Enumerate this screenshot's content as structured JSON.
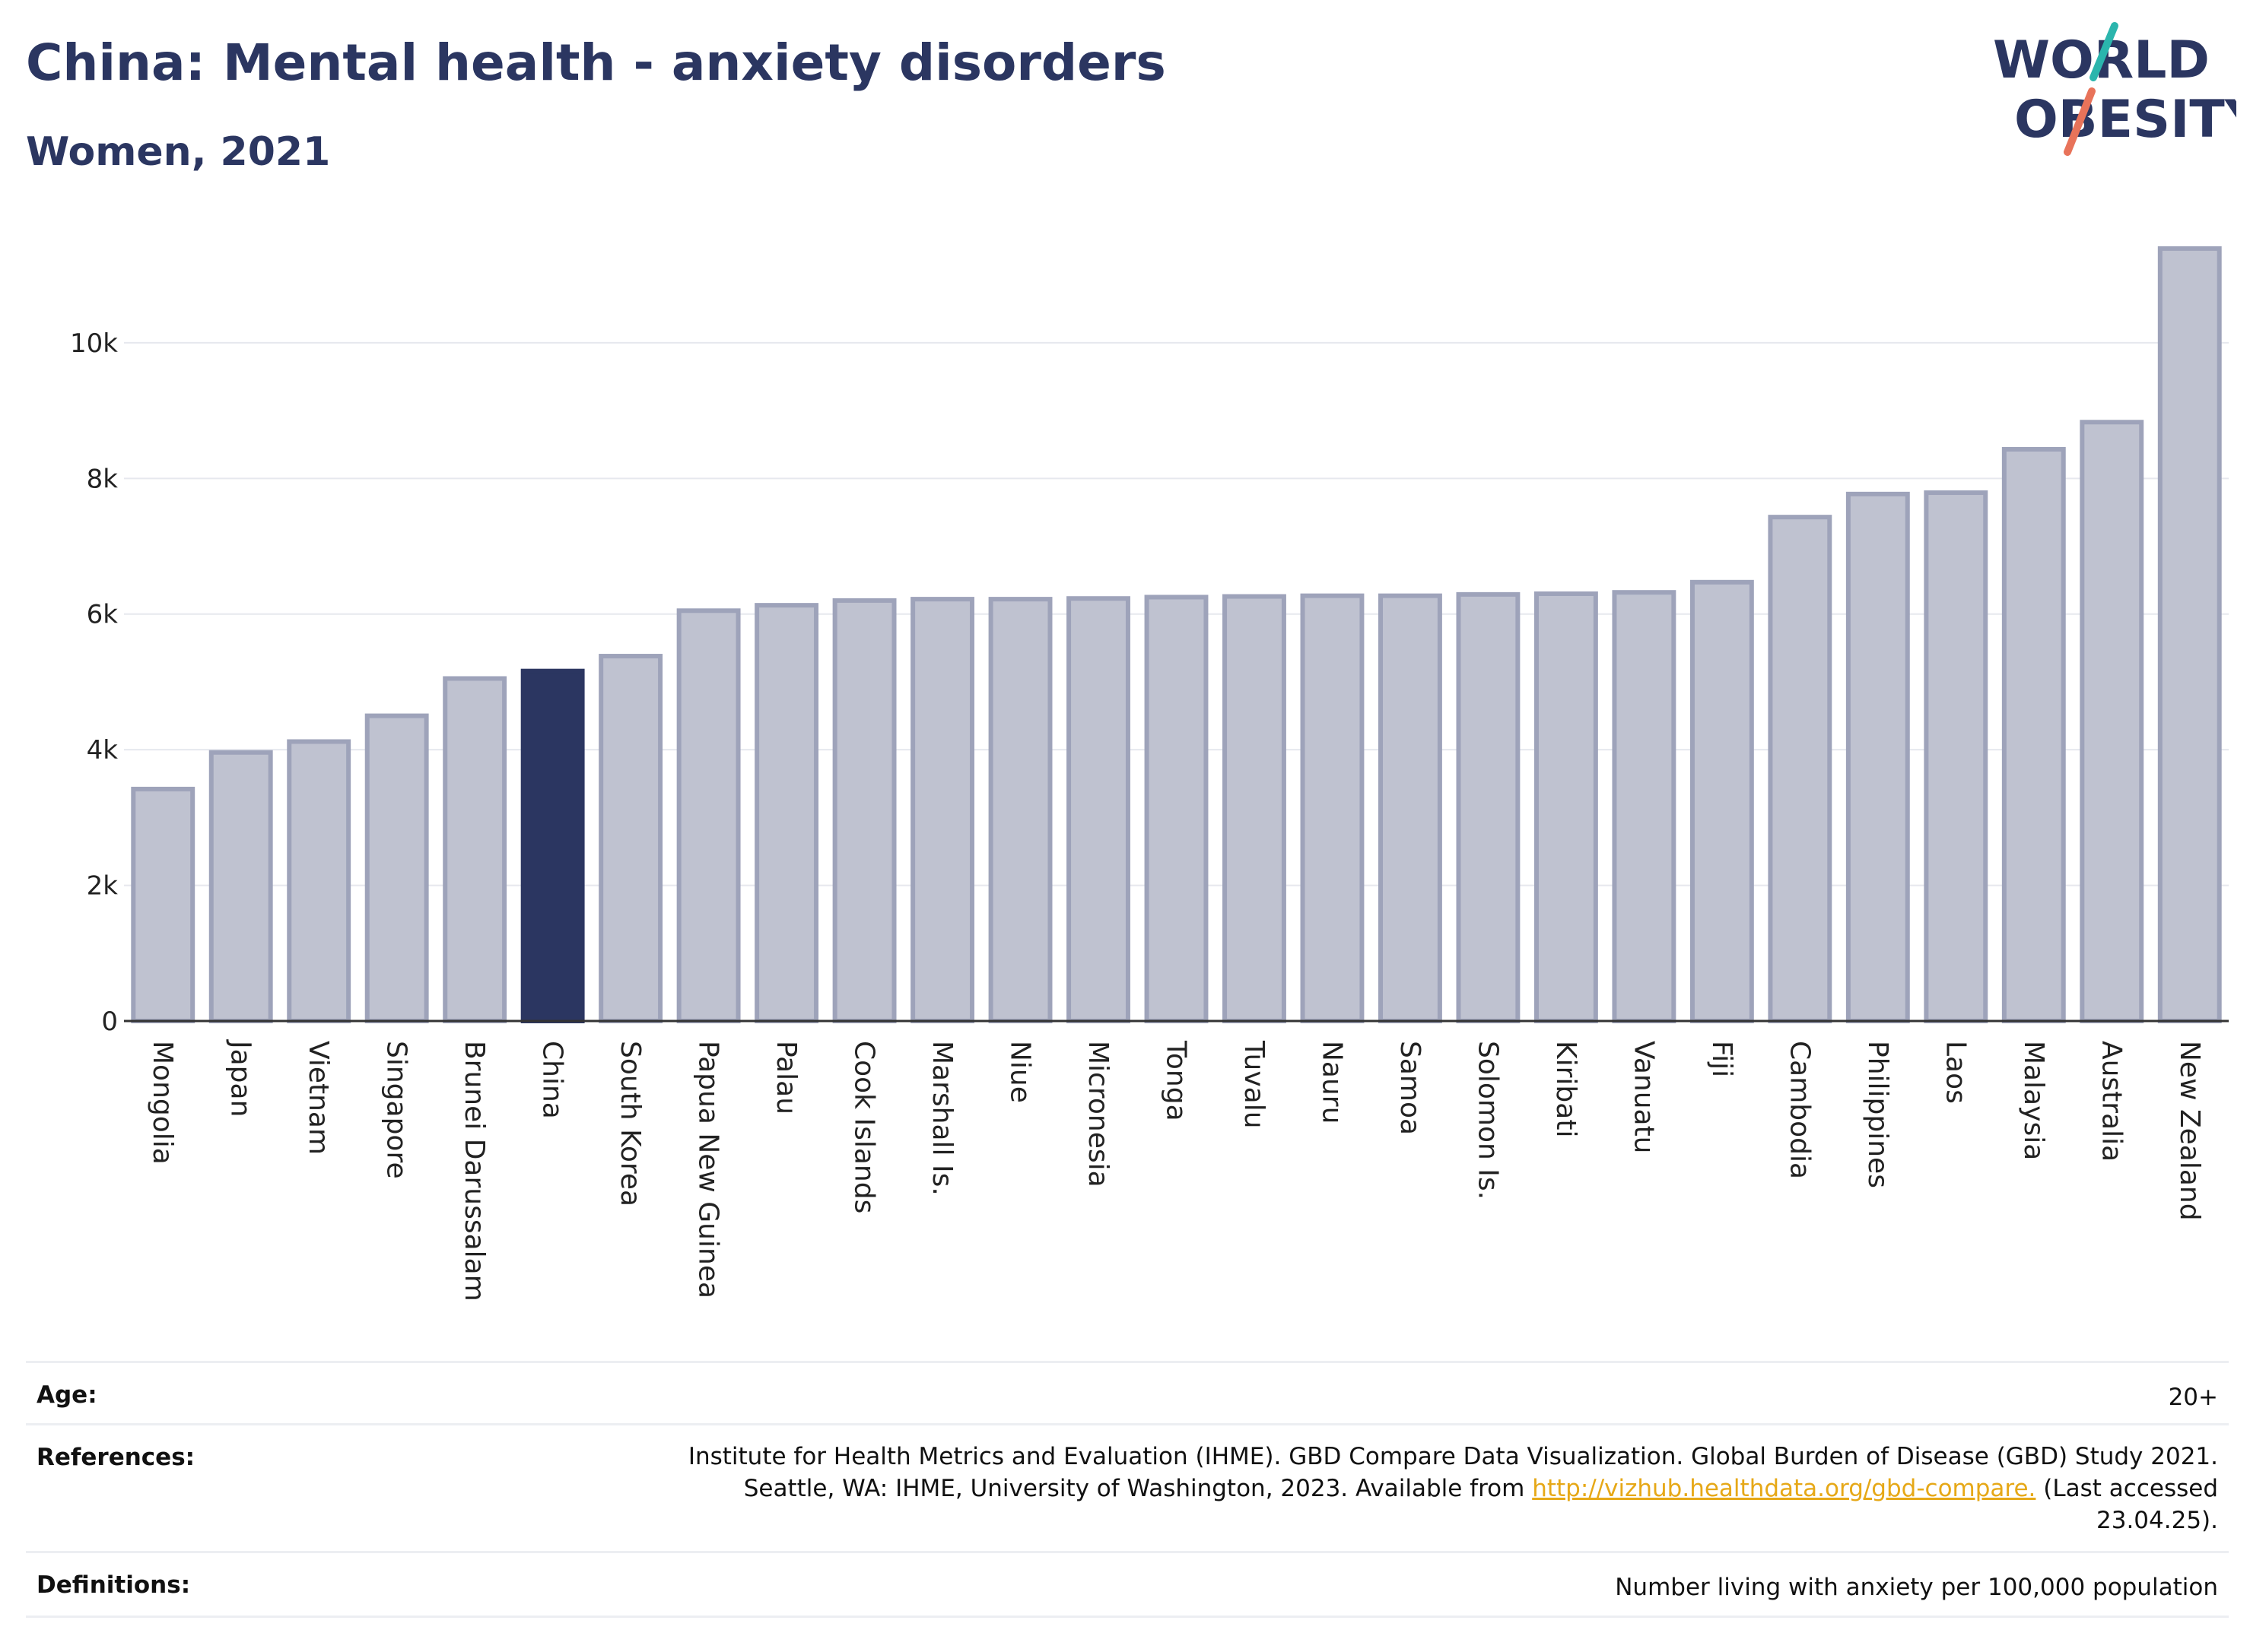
{
  "header": {
    "title": "China: Mental health - anxiety disorders",
    "subtitle": "Women, 2021"
  },
  "logo": {
    "line1": "WORLD",
    "line2": "OBESITY",
    "colors": {
      "text": "#2b3661",
      "slash_teal": "#2bb5ad",
      "slash_coral": "#e8735a"
    }
  },
  "chart_data": {
    "type": "bar",
    "ylim": [
      0,
      11400
    ],
    "yticks": [
      0,
      2000,
      4000,
      6000,
      8000,
      10000
    ],
    "ytick_labels": [
      "0",
      "2k",
      "4k",
      "6k",
      "8k",
      "10k"
    ],
    "grid": true,
    "highlight": "China",
    "colors": {
      "bar": "#bfc2d0",
      "bar_edge": "#9ea3ba",
      "highlight": "#2b3661"
    },
    "categories": [
      "Mongolia",
      "Japan",
      "Vietnam",
      "Singapore",
      "Brunei Darussalam",
      "China",
      "South Korea",
      "Papua New Guinea",
      "Palau",
      "Cook Islands",
      "Marshall Is.",
      "Niue",
      "Micronesia",
      "Tonga",
      "Tuvalu",
      "Nauru",
      "Samoa",
      "Solomon Is.",
      "Kiribati",
      "Vanuatu",
      "Fiji",
      "Cambodia",
      "Philippines",
      "Laos",
      "Malaysia",
      "Australia",
      "New Zealand"
    ],
    "values": [
      3420,
      3960,
      4120,
      4500,
      5050,
      5160,
      5380,
      6050,
      6130,
      6200,
      6220,
      6220,
      6230,
      6250,
      6260,
      6270,
      6270,
      6290,
      6300,
      6320,
      6470,
      7430,
      7770,
      7790,
      8430,
      8830,
      11390
    ]
  },
  "info": {
    "age_label": "Age:",
    "age_value": "20+",
    "references_label": "References:",
    "references_line1": "Institute for Health Metrics and Evaluation (IHME). GBD Compare Data Visualization. Global Burden of Disease (GBD) Study 2021.",
    "references_line2_pre": "Seattle, WA: IHME, University of Washington, 2023. Available from ",
    "references_link": "http://vizhub.healthdata.org/gbd-compare.",
    "references_line2_post": " (Last accessed",
    "references_line3": "23.04.25).",
    "definitions_label": "Definitions:",
    "definitions_value": "Number living with anxiety per 100,000 population"
  }
}
